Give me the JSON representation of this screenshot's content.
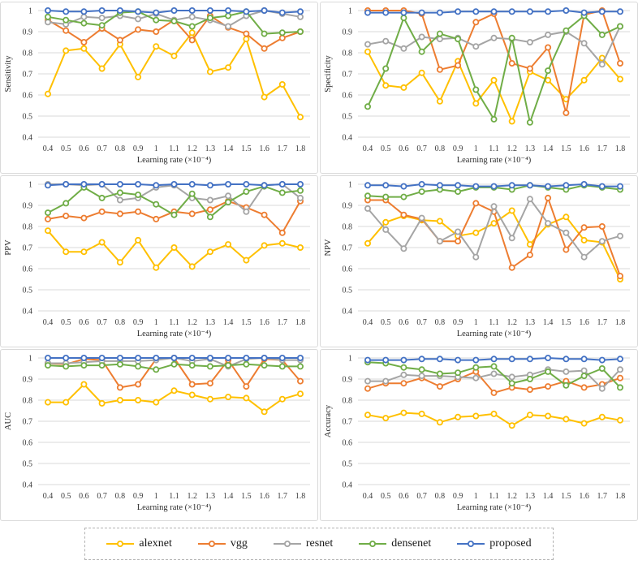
{
  "figure": {
    "xlabel": "Learning rate (×10⁻⁴)",
    "x_tick_labels": [
      "0.4",
      "0.5",
      "0.6",
      "0.7",
      "0.8",
      "0.9",
      "1",
      "1.1",
      "1.2",
      "1.3",
      "1.4",
      "1.5",
      "1.6",
      "1.7",
      "1.8"
    ],
    "y_tick_labels": [
      "0.4",
      "0.5",
      "0.6",
      "0.7",
      "0.8",
      "0.9",
      "1"
    ],
    "ylim": [
      0.4,
      1.0
    ],
    "grid": "horizontal-light",
    "gridline_color": "#d9d9d9",
    "panel_border_color": "#d9d9d9"
  },
  "legend": {
    "position": "bottom",
    "border_style": "dashed",
    "entries": [
      {
        "label": "alexnet",
        "color": "#FFC000"
      },
      {
        "label": "vgg",
        "color": "#ED7D31"
      },
      {
        "label": "resnet",
        "color": "#A5A5A5"
      },
      {
        "label": "densenet",
        "color": "#70AD47"
      },
      {
        "label": "proposed",
        "color": "#4472C4"
      }
    ]
  },
  "chart_data": [
    {
      "type": "line",
      "ylabel": "Sensitivity",
      "xlabel": "Learning rate (×10⁻⁴)",
      "categories": [
        "0.4",
        "0.5",
        "0.6",
        "0.7",
        "0.8",
        "0.9",
        "1",
        "1.1",
        "1.2",
        "1.3",
        "1.4",
        "1.5",
        "1.6",
        "1.7",
        "1.8"
      ],
      "ylim": [
        0.4,
        1.0
      ],
      "yticks": [
        "0.4",
        "0.5",
        "0.6",
        "0.7",
        "0.8",
        "0.9",
        "1"
      ],
      "series": [
        {
          "name": "alexnet",
          "color": "#FFC000",
          "values": [
            0.605,
            0.81,
            0.82,
            0.725,
            0.84,
            0.685,
            0.83,
            0.785,
            0.895,
            0.71,
            0.73,
            0.865,
            0.59,
            0.65,
            0.495
          ]
        },
        {
          "name": "vgg",
          "color": "#ED7D31",
          "values": [
            0.955,
            0.905,
            0.85,
            0.915,
            0.86,
            0.91,
            0.9,
            0.955,
            0.86,
            0.975,
            0.92,
            0.89,
            0.82,
            0.87,
            0.9
          ]
        },
        {
          "name": "resnet",
          "color": "#A5A5A5",
          "values": [
            0.945,
            0.935,
            0.97,
            0.965,
            0.975,
            0.96,
            0.985,
            0.955,
            0.97,
            0.955,
            0.925,
            0.975,
            1.0,
            0.985,
            0.97
          ]
        },
        {
          "name": "densenet",
          "color": "#70AD47",
          "values": [
            0.97,
            0.955,
            0.94,
            0.93,
            0.99,
            0.995,
            0.955,
            0.95,
            0.925,
            0.965,
            0.975,
            0.995,
            0.89,
            0.895,
            0.9
          ]
        },
        {
          "name": "proposed",
          "color": "#4472C4",
          "values": [
            1.0,
            0.995,
            0.995,
            1.0,
            1.0,
            0.995,
            0.99,
            1.0,
            1.0,
            1.0,
            1.0,
            0.995,
            1.0,
            0.99,
            0.995
          ]
        }
      ]
    },
    {
      "type": "line",
      "ylabel": "Specificity",
      "xlabel": "Learning rate (×10⁻⁴)",
      "categories": [
        "0.4",
        "0.5",
        "0.6",
        "0.7",
        "0.8",
        "0.9",
        "1",
        "1.1",
        "1.2",
        "1.3",
        "1.4",
        "1.5",
        "1.6",
        "1.7",
        "1.8"
      ],
      "ylim": [
        0.4,
        1.0
      ],
      "yticks": [
        "0.4",
        "0.5",
        "0.6",
        "0.7",
        "0.8",
        "0.9",
        "1"
      ],
      "series": [
        {
          "name": "alexnet",
          "color": "#FFC000",
          "values": [
            0.805,
            0.645,
            0.635,
            0.705,
            0.57,
            0.76,
            0.56,
            0.67,
            0.475,
            0.71,
            0.67,
            0.58,
            0.67,
            0.775,
            0.675
          ]
        },
        {
          "name": "vgg",
          "color": "#ED7D31",
          "values": [
            1.0,
            1.0,
            1.0,
            0.985,
            0.72,
            0.74,
            0.945,
            0.985,
            0.75,
            0.725,
            0.825,
            0.515,
            0.98,
            1.0,
            0.75
          ]
        },
        {
          "name": "resnet",
          "color": "#A5A5A5",
          "values": [
            0.84,
            0.855,
            0.82,
            0.875,
            0.865,
            0.87,
            0.83,
            0.87,
            0.865,
            0.85,
            0.885,
            0.9,
            0.845,
            0.745,
            0.925
          ]
        },
        {
          "name": "densenet",
          "color": "#70AD47",
          "values": [
            0.545,
            0.725,
            0.965,
            0.805,
            0.89,
            0.865,
            0.625,
            0.485,
            0.87,
            0.47,
            0.715,
            0.905,
            0.975,
            0.885,
            0.925
          ]
        },
        {
          "name": "proposed",
          "color": "#4472C4",
          "values": [
            0.99,
            0.99,
            0.99,
            0.99,
            0.99,
            0.995,
            0.995,
            0.995,
            0.995,
            0.995,
            0.995,
            1.0,
            0.99,
            0.995,
            0.995
          ]
        }
      ]
    },
    {
      "type": "line",
      "ylabel": "PPV",
      "xlabel": "Learning rate (×10⁻⁴)",
      "categories": [
        "0.4",
        "0.5",
        "0.6",
        "0.7",
        "0.8",
        "0.9",
        "1",
        "1.1",
        "1.2",
        "1.3",
        "1.4",
        "1.5",
        "1.6",
        "1.7",
        "1.8"
      ],
      "ylim": [
        0.4,
        1.0
      ],
      "yticks": [
        "0.4",
        "0.5",
        "0.6",
        "0.7",
        "0.8",
        "0.9",
        "1"
      ],
      "series": [
        {
          "name": "alexnet",
          "color": "#FFC000",
          "values": [
            0.78,
            0.68,
            0.68,
            0.725,
            0.63,
            0.735,
            0.605,
            0.7,
            0.61,
            0.68,
            0.715,
            0.64,
            0.71,
            0.72,
            0.7
          ]
        },
        {
          "name": "vgg",
          "color": "#ED7D31",
          "values": [
            0.835,
            0.85,
            0.84,
            0.87,
            0.86,
            0.87,
            0.835,
            0.87,
            0.86,
            0.88,
            0.92,
            0.89,
            0.855,
            0.77,
            0.92
          ]
        },
        {
          "name": "resnet",
          "color": "#A5A5A5",
          "values": [
            1.0,
            1.0,
            0.995,
            1.0,
            0.925,
            0.935,
            0.985,
            0.995,
            0.935,
            0.925,
            0.945,
            0.87,
            0.995,
            1.0,
            0.935
          ]
        },
        {
          "name": "densenet",
          "color": "#70AD47",
          "values": [
            0.865,
            0.91,
            0.985,
            0.935,
            0.96,
            0.95,
            0.905,
            0.855,
            0.955,
            0.845,
            0.915,
            0.965,
            0.99,
            0.96,
            0.97
          ]
        },
        {
          "name": "proposed",
          "color": "#4472C4",
          "values": [
            0.995,
            1.0,
            1.0,
            1.0,
            1.0,
            1.0,
            0.995,
            1.0,
            1.0,
            0.995,
            1.0,
            1.0,
            0.995,
            1.0,
            1.0
          ]
        }
      ]
    },
    {
      "type": "line",
      "ylabel": "NPV",
      "xlabel": "Learning rate (×10⁻⁴)",
      "categories": [
        "0.4",
        "0.5",
        "0.6",
        "0.7",
        "0.8",
        "0.9",
        "1",
        "1.1",
        "1.2",
        "1.3",
        "1.4",
        "1.5",
        "1.6",
        "1.7",
        "1.8"
      ],
      "ylim": [
        0.4,
        1.0
      ],
      "yticks": [
        "0.4",
        "0.5",
        "0.6",
        "0.7",
        "0.8",
        "0.9",
        "1"
      ],
      "series": [
        {
          "name": "alexnet",
          "color": "#FFC000",
          "values": [
            0.72,
            0.82,
            0.85,
            0.83,
            0.825,
            0.755,
            0.77,
            0.815,
            0.875,
            0.715,
            0.81,
            0.845,
            0.735,
            0.725,
            0.55
          ]
        },
        {
          "name": "vgg",
          "color": "#ED7D31",
          "values": [
            0.925,
            0.925,
            0.855,
            0.835,
            0.73,
            0.73,
            0.91,
            0.87,
            0.605,
            0.665,
            0.935,
            0.69,
            0.795,
            0.8,
            0.565
          ]
        },
        {
          "name": "resnet",
          "color": "#A5A5A5",
          "values": [
            0.885,
            0.785,
            0.695,
            0.84,
            0.73,
            0.775,
            0.655,
            0.895,
            0.745,
            0.93,
            0.815,
            0.77,
            0.655,
            0.73,
            0.755
          ]
        },
        {
          "name": "densenet",
          "color": "#70AD47",
          "values": [
            0.945,
            0.94,
            0.94,
            0.965,
            0.975,
            0.965,
            0.985,
            0.985,
            0.975,
            0.995,
            0.985,
            0.975,
            0.995,
            0.985,
            0.975
          ]
        },
        {
          "name": "proposed",
          "color": "#4472C4",
          "values": [
            0.995,
            0.995,
            0.99,
            1.0,
            0.995,
            0.995,
            0.99,
            0.99,
            0.995,
            0.995,
            0.99,
            0.995,
            1.0,
            0.99,
            0.99
          ]
        }
      ]
    },
    {
      "type": "line",
      "ylabel": "AUC",
      "xlabel": "Learning rate (×10⁻⁴)",
      "categories": [
        "0.4",
        "0.5",
        "0.6",
        "0.7",
        "0.8",
        "0.9",
        "1",
        "1.1",
        "1.2",
        "1.3",
        "1.4",
        "1.5",
        "1.6",
        "1.7",
        "1.8"
      ],
      "ylim": [
        0.4,
        1.0
      ],
      "yticks": [
        "0.4",
        "0.5",
        "0.6",
        "0.7",
        "0.8",
        "0.9",
        "1"
      ],
      "series": [
        {
          "name": "alexnet",
          "color": "#FFC000",
          "values": [
            0.79,
            0.79,
            0.875,
            0.785,
            0.8,
            0.8,
            0.79,
            0.845,
            0.825,
            0.805,
            0.815,
            0.81,
            0.745,
            0.805,
            0.83
          ]
        },
        {
          "name": "vgg",
          "color": "#ED7D31",
          "values": [
            0.975,
            0.97,
            0.995,
            0.99,
            0.86,
            0.875,
            0.995,
            1.0,
            0.875,
            0.88,
            0.99,
            0.865,
            0.995,
            0.99,
            0.89
          ]
        },
        {
          "name": "resnet",
          "color": "#A5A5A5",
          "values": [
            0.975,
            0.975,
            0.98,
            0.985,
            0.985,
            0.985,
            0.99,
            1.0,
            0.985,
            0.995,
            0.96,
            0.995,
            1.0,
            0.99,
            0.99
          ]
        },
        {
          "name": "densenet",
          "color": "#70AD47",
          "values": [
            0.965,
            0.96,
            0.965,
            0.965,
            0.97,
            0.96,
            0.945,
            0.97,
            0.965,
            0.96,
            0.965,
            0.97,
            0.965,
            0.96,
            0.96
          ]
        },
        {
          "name": "proposed",
          "color": "#4472C4",
          "values": [
            1.0,
            1.0,
            1.0,
            1.0,
            1.0,
            1.0,
            1.0,
            1.0,
            1.0,
            1.0,
            1.0,
            1.0,
            1.0,
            1.0,
            1.0
          ]
        }
      ]
    },
    {
      "type": "line",
      "ylabel": "Accuracy",
      "xlabel": "Learning rate (×10⁻⁴)",
      "categories": [
        "0.4",
        "0.5",
        "0.6",
        "0.7",
        "0.8",
        "0.9",
        "1",
        "1.1",
        "1.2",
        "1.3",
        "1.4",
        "1.5",
        "1.6",
        "1.7",
        "1.8"
      ],
      "ylim": [
        0.4,
        1.0
      ],
      "yticks": [
        "0.4",
        "0.5",
        "0.6",
        "0.7",
        "0.8",
        "0.9",
        "1"
      ],
      "series": [
        {
          "name": "alexnet",
          "color": "#FFC000",
          "values": [
            0.73,
            0.715,
            0.74,
            0.735,
            0.695,
            0.72,
            0.725,
            0.735,
            0.68,
            0.73,
            0.725,
            0.71,
            0.69,
            0.72,
            0.705
          ]
        },
        {
          "name": "vgg",
          "color": "#ED7D31",
          "values": [
            0.855,
            0.88,
            0.88,
            0.905,
            0.865,
            0.9,
            0.935,
            0.835,
            0.86,
            0.85,
            0.865,
            0.89,
            0.86,
            0.875,
            0.905
          ]
        },
        {
          "name": "resnet",
          "color": "#A5A5A5",
          "values": [
            0.89,
            0.89,
            0.92,
            0.915,
            0.915,
            0.91,
            0.905,
            0.925,
            0.91,
            0.92,
            0.945,
            0.935,
            0.94,
            0.855,
            0.945
          ]
        },
        {
          "name": "densenet",
          "color": "#70AD47",
          "values": [
            0.98,
            0.975,
            0.955,
            0.945,
            0.925,
            0.93,
            0.955,
            0.96,
            0.88,
            0.9,
            0.935,
            0.87,
            0.915,
            0.95,
            0.86
          ]
        },
        {
          "name": "proposed",
          "color": "#4472C4",
          "values": [
            0.99,
            0.99,
            0.99,
            0.995,
            0.995,
            0.99,
            0.99,
            0.995,
            0.995,
            0.995,
            1.0,
            0.995,
            0.995,
            0.99,
            0.995
          ]
        }
      ]
    }
  ]
}
